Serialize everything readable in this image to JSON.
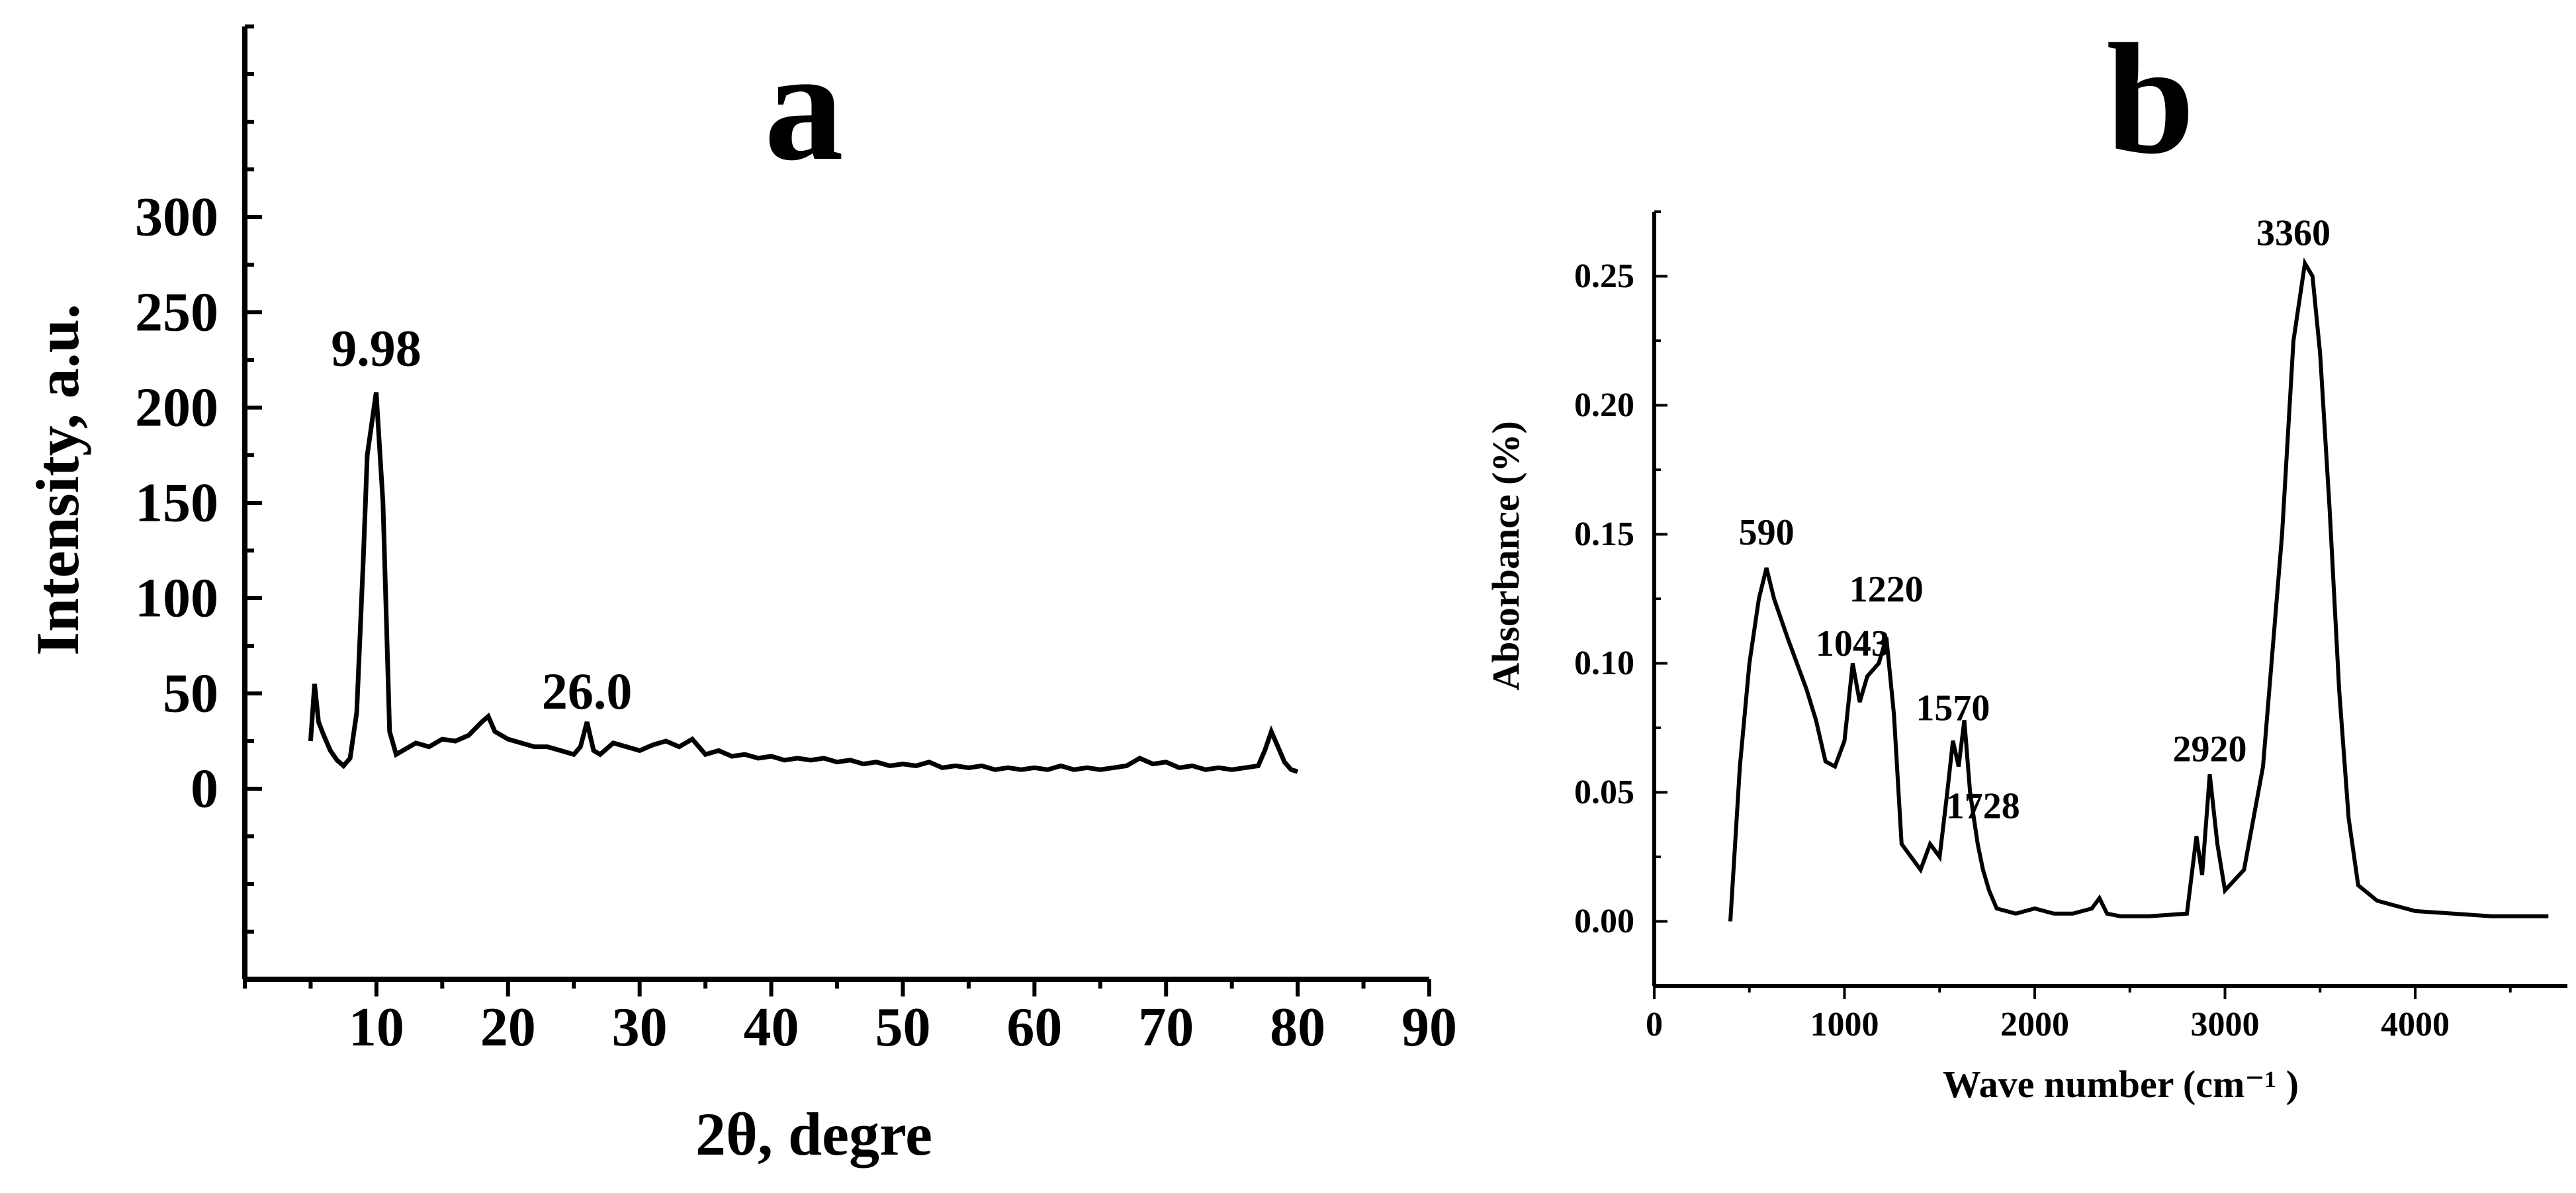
{
  "chart_data": [
    {
      "type": "line",
      "panel_label": "a",
      "xlabel": "2θ, degre",
      "ylabel": "Intensity, a.u.",
      "xlim": [
        0,
        90
      ],
      "ylim": [
        -100,
        400
      ],
      "xticks": [
        10,
        20,
        30,
        40,
        50,
        60,
        70,
        80,
        90
      ],
      "yticks": [
        0,
        50,
        100,
        150,
        200,
        250,
        300
      ],
      "grid": false,
      "line_color": "#000000",
      "annotations": [
        {
          "text": "9.98",
          "x": 9.98,
          "y": 222
        },
        {
          "text": "26.0",
          "x": 26.0,
          "y": 42
        }
      ],
      "series": [
        {
          "x": [
            5,
            5.3,
            5.6,
            6,
            6.5,
            7,
            7.5,
            8,
            8.5,
            9,
            9.3,
            9.98,
            10.5,
            11,
            11.5,
            12,
            13,
            14,
            15,
            16,
            17,
            18,
            18.5,
            19,
            20,
            21,
            22,
            23,
            24,
            25,
            25.5,
            26,
            26.5,
            27,
            28,
            29,
            30,
            31,
            32,
            33,
            34,
            35,
            36,
            37,
            38,
            39,
            40,
            41,
            42,
            43,
            44,
            45,
            46,
            47,
            48,
            49,
            50,
            51,
            52,
            53,
            54,
            55,
            56,
            57,
            58,
            59,
            60,
            61,
            62,
            63,
            64,
            65,
            66,
            67,
            68,
            69,
            70,
            71,
            72,
            73,
            74,
            75,
            76,
            77,
            77.5,
            78,
            78.5,
            79,
            79.5,
            80
          ],
          "y": [
            25,
            55,
            35,
            28,
            20,
            15,
            12,
            16,
            40,
            120,
            175,
            208,
            150,
            30,
            18,
            20,
            24,
            22,
            26,
            25,
            28,
            35,
            38,
            30,
            26,
            24,
            22,
            22,
            20,
            18,
            22,
            35,
            20,
            18,
            24,
            22,
            20,
            23,
            25,
            22,
            26,
            18,
            20,
            17,
            18,
            16,
            17,
            15,
            16,
            15,
            16,
            14,
            15,
            13,
            14,
            12,
            13,
            12,
            14,
            11,
            12,
            11,
            12,
            10,
            11,
            10,
            11,
            10,
            12,
            10,
            11,
            10,
            11,
            12,
            16,
            13,
            14,
            11,
            12,
            10,
            11,
            10,
            11,
            12,
            20,
            30,
            22,
            14,
            10,
            9
          ]
        }
      ]
    },
    {
      "type": "line",
      "panel_label": "b",
      "xlabel": "Wave number (cm⁻¹ )",
      "ylabel": "Absorbance (%)",
      "xlim": [
        0,
        4800
      ],
      "ylim": [
        -0.025,
        0.275
      ],
      "xticks": [
        0,
        1000,
        2000,
        3000,
        4000
      ],
      "yticks": [
        0.0,
        0.05,
        0.1,
        0.15,
        0.2,
        0.25
      ],
      "grid": false,
      "line_color": "#000000",
      "annotations": [
        {
          "text": "590",
          "x": 590,
          "y": 0.146
        },
        {
          "text": "1043",
          "x": 1043,
          "y": 0.103
        },
        {
          "text": "1220",
          "x": 1220,
          "y": 0.124
        },
        {
          "text": "1570",
          "x": 1570,
          "y": 0.078
        },
        {
          "text": "1728",
          "x": 1728,
          "y": 0.04
        },
        {
          "text": "2920",
          "x": 2920,
          "y": 0.062
        },
        {
          "text": "3360",
          "x": 3360,
          "y": 0.262
        }
      ],
      "series": [
        {
          "x": [
            400,
            450,
            500,
            550,
            590,
            630,
            700,
            800,
            850,
            900,
            950,
            1000,
            1043,
            1080,
            1120,
            1180,
            1220,
            1260,
            1300,
            1350,
            1400,
            1450,
            1500,
            1540,
            1570,
            1600,
            1630,
            1660,
            1700,
            1728,
            1760,
            1800,
            1900,
            2000,
            2100,
            2200,
            2300,
            2340,
            2380,
            2450,
            2600,
            2800,
            2850,
            2880,
            2920,
            2960,
            3000,
            3100,
            3200,
            3300,
            3360,
            3420,
            3460,
            3500,
            3550,
            3600,
            3650,
            3700,
            3800,
            3900,
            4000,
            4200,
            4400,
            4600,
            4700
          ],
          "y": [
            0.0,
            0.06,
            0.1,
            0.125,
            0.137,
            0.125,
            0.11,
            0.09,
            0.078,
            0.062,
            0.06,
            0.07,
            0.1,
            0.085,
            0.095,
            0.1,
            0.11,
            0.08,
            0.03,
            0.025,
            0.02,
            0.03,
            0.025,
            0.05,
            0.07,
            0.06,
            0.078,
            0.05,
            0.03,
            0.02,
            0.012,
            0.005,
            0.003,
            0.005,
            0.003,
            0.003,
            0.005,
            0.009,
            0.003,
            0.002,
            0.002,
            0.003,
            0.033,
            0.018,
            0.057,
            0.03,
            0.012,
            0.02,
            0.06,
            0.15,
            0.225,
            0.255,
            0.25,
            0.22,
            0.16,
            0.09,
            0.04,
            0.014,
            0.008,
            0.006,
            0.004,
            0.003,
            0.002,
            0.002,
            0.002
          ]
        }
      ]
    }
  ]
}
